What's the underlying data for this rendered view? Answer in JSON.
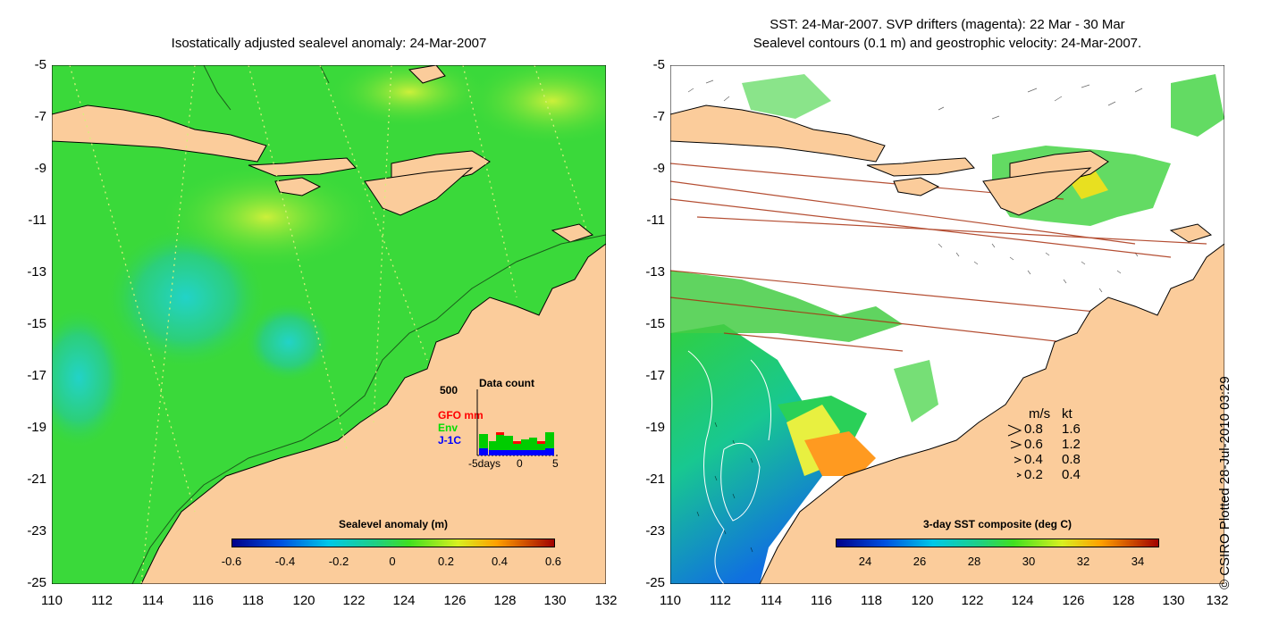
{
  "left_panel": {
    "title": "Isostatically adjusted sealevel anomaly: 24-Mar-2007",
    "colorbar": {
      "label": "Sealevel anomaly (m)",
      "ticks": [
        "-0.6",
        "-0.4",
        "-0.2",
        "0",
        "0.2",
        "0.4",
        "0.6"
      ]
    },
    "inset": {
      "title": "Data count",
      "y_max": "500",
      "series": [
        {
          "name": "GFO mm",
          "color": "#ff0000"
        },
        {
          "name": "Env",
          "color": "#00cc00"
        },
        {
          "name": "J-1C",
          "color": "#0000ff"
        }
      ],
      "x_labels": [
        "-5days",
        "0",
        "5"
      ]
    }
  },
  "right_panel": {
    "title_line1": "SST: 24-Mar-2007. SVP drifters (magenta): 22 Mar - 30 Mar",
    "title_line2": "Sealevel contours (0.1 m) and geostrophic velocity: 24-Mar-2007.",
    "colorbar": {
      "label": "3-day SST composite (deg C)",
      "ticks": [
        "24",
        "26",
        "28",
        "30",
        "32",
        "34"
      ]
    },
    "velocity_legend": {
      "header_ms": "m/s",
      "header_kt": "kt",
      "rows": [
        {
          "ms": "0.8",
          "kt": "1.6"
        },
        {
          "ms": "0.6",
          "kt": "1.2"
        },
        {
          "ms": "0.4",
          "kt": "0.8"
        },
        {
          "ms": "0.2",
          "kt": "0.4"
        }
      ]
    }
  },
  "axes": {
    "y_ticks": [
      "-5",
      "-7",
      "-9",
      "-11",
      "-13",
      "-15",
      "-17",
      "-19",
      "-21",
      "-23",
      "-25"
    ],
    "x_ticks": [
      "110",
      "112",
      "114",
      "116",
      "118",
      "120",
      "122",
      "124",
      "126",
      "128",
      "130",
      "132"
    ]
  },
  "credit": "© CSIRO Plotted 28-Jul-2010 03:29",
  "colors": {
    "land": "#fbcc9b",
    "ocean_green": "#3ad93a",
    "sst_white": "#ffffff"
  }
}
